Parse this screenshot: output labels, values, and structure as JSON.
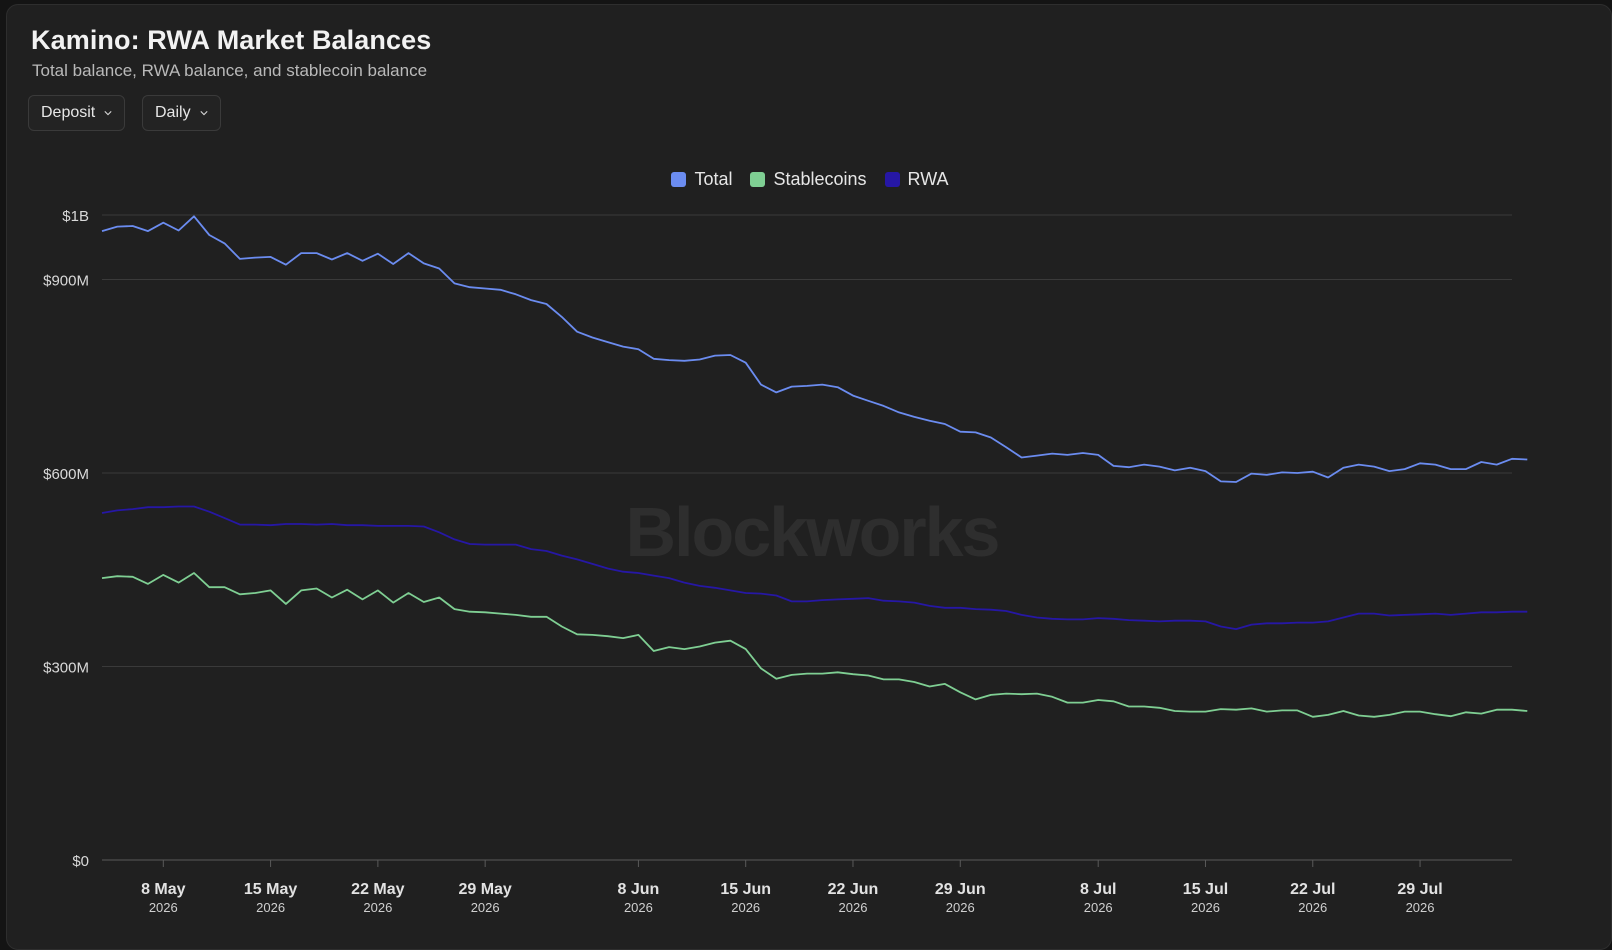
{
  "header": {
    "title": "Kamino: RWA Market Balances",
    "subtitle": "Total balance, RWA balance, and stablecoin balance"
  },
  "controls": {
    "metric_label": "Deposit",
    "interval_label": "Daily"
  },
  "watermark": "Blockworks",
  "colors": {
    "background": "#202020",
    "grid": "#3a3a3a",
    "total": "#6b8cf0",
    "stablecoins": "#7fcf93",
    "rwa": "#2617a5"
  },
  "chart_data": {
    "type": "line",
    "title": "Kamino: RWA Market Balances",
    "subtitle": "Total balance, RWA balance, and stablecoin balance",
    "x_start": "2026-05-04",
    "x_end": "2026-08-04",
    "x_ticks": [
      {
        "date": "2026-05-08",
        "label": "8 May",
        "year": "2026"
      },
      {
        "date": "2026-05-15",
        "label": "15 May",
        "year": "2026"
      },
      {
        "date": "2026-05-22",
        "label": "22 May",
        "year": "2026"
      },
      {
        "date": "2026-05-29",
        "label": "29 May",
        "year": "2026"
      },
      {
        "date": "2026-06-08",
        "label": "8 Jun",
        "year": "2026"
      },
      {
        "date": "2026-06-15",
        "label": "15 Jun",
        "year": "2026"
      },
      {
        "date": "2026-06-22",
        "label": "22 Jun",
        "year": "2026"
      },
      {
        "date": "2026-06-29",
        "label": "29 Jun",
        "year": "2026"
      },
      {
        "date": "2026-07-08",
        "label": "8 Jul",
        "year": "2026"
      },
      {
        "date": "2026-07-15",
        "label": "15 Jul",
        "year": "2026"
      },
      {
        "date": "2026-07-22",
        "label": "22 Jul",
        "year": "2026"
      },
      {
        "date": "2026-07-29",
        "label": "29 Jul",
        "year": "2026"
      }
    ],
    "y_ticks": [
      {
        "value": 0,
        "label": "$0"
      },
      {
        "value": 300,
        "label": "$300M"
      },
      {
        "value": 600,
        "label": "$600M"
      },
      {
        "value": 900,
        "label": "$900M"
      },
      {
        "value": 1000,
        "label": "$1B"
      }
    ],
    "y_unit": "USD millions",
    "ylim": [
      0,
      1000
    ],
    "grid": true,
    "legend_position": "top-center",
    "series": [
      {
        "name": "Total",
        "values": [
          975,
          982,
          983,
          975,
          988,
          976,
          998,
          969,
          956,
          932,
          934,
          935,
          923,
          941,
          941,
          931,
          941,
          929,
          940,
          924,
          941,
          925,
          917,
          894,
          888,
          886,
          884,
          877,
          868,
          862,
          842,
          819,
          810,
          803,
          796,
          792,
          777,
          775,
          774,
          776,
          782,
          783,
          771,
          737,
          725,
          734,
          735,
          737,
          733,
          720,
          712,
          704,
          694,
          687,
          681,
          676,
          664,
          663,
          655,
          640,
          624,
          627,
          630,
          628,
          631,
          628,
          611,
          609,
          613,
          610,
          604,
          608,
          603,
          587,
          586,
          599,
          597,
          601,
          600,
          602,
          593,
          608,
          613,
          610,
          603,
          606,
          615,
          613,
          606,
          606,
          617,
          613,
          622,
          621
        ],
        "dates_first": "2026-05-04"
      },
      {
        "name": "Stablecoins",
        "values": [
          437,
          440,
          439,
          428,
          442,
          430,
          445,
          423,
          423,
          412,
          414,
          418,
          397,
          418,
          421,
          407,
          419,
          404,
          418,
          399,
          414,
          400,
          407,
          389,
          385,
          384,
          382,
          380,
          377,
          377,
          362,
          350,
          349,
          347,
          344,
          349,
          324,
          330,
          327,
          331,
          337,
          340,
          327,
          297,
          281,
          287,
          289,
          289,
          291,
          288,
          286,
          280,
          280,
          276,
          269,
          273,
          260,
          249,
          256,
          258,
          257,
          258,
          253,
          244,
          244,
          248,
          246,
          238,
          238,
          236,
          231,
          230,
          230,
          234,
          233,
          235,
          230,
          232,
          232,
          222,
          225,
          231,
          224,
          222,
          225,
          230,
          230,
          226,
          223,
          229,
          227,
          233,
          233,
          231
        ],
        "dates_first": "2026-05-04"
      },
      {
        "name": "RWA",
        "values": [
          538,
          542,
          544,
          547,
          547,
          548,
          548,
          540,
          530,
          520,
          520,
          519,
          521,
          521,
          520,
          521,
          519,
          519,
          518,
          518,
          518,
          517,
          508,
          497,
          490,
          489,
          489,
          489,
          482,
          479,
          472,
          466,
          459,
          452,
          447,
          445,
          441,
          437,
          430,
          425,
          422,
          418,
          414,
          413,
          410,
          401,
          401,
          403,
          404,
          405,
          406,
          402,
          401,
          399,
          394,
          391,
          391,
          389,
          388,
          386,
          380,
          376,
          374,
          373,
          373,
          375,
          374,
          372,
          371,
          370,
          371,
          371,
          370,
          362,
          358,
          365,
          367,
          367,
          368,
          368,
          370,
          376,
          382,
          382,
          379,
          380,
          381,
          382,
          380,
          382,
          384,
          384,
          385,
          385
        ],
        "dates_first": "2026-05-04"
      }
    ]
  }
}
